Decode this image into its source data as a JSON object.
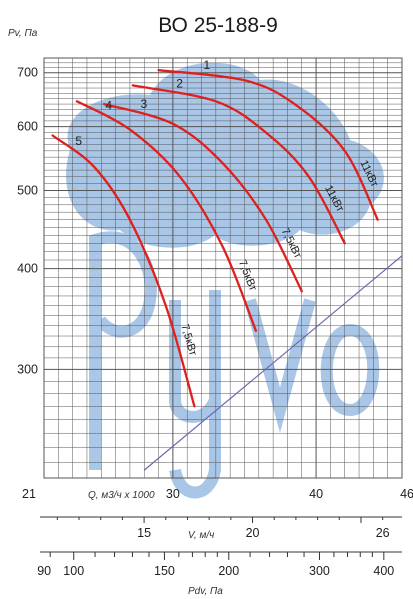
{
  "chart_data": {
    "type": "line",
    "title": "ВО 25-188-9",
    "ylabel": "Pv, Па",
    "yscale": "log",
    "ylim": [
      220,
      730
    ],
    "y_ticks": [
      300,
      400,
      500,
      600,
      700
    ],
    "xlim": [
      21,
      46
    ],
    "x_ticks": [
      21,
      30,
      40,
      46
    ],
    "xlabel": "Q, м3/ч x 1000",
    "x2label": "V, м/ч",
    "x2_ticks": [
      15,
      20,
      26
    ],
    "x3label": "Pdv, Па",
    "x3_ticks": [
      90,
      100,
      150,
      200,
      300,
      400
    ],
    "system_line": {
      "x": [
        28,
        46
      ],
      "y": [
        225,
        415
      ]
    },
    "series": [
      {
        "label": "1",
        "power": "11кВт",
        "x": [
          29.0,
          35.0,
          38.5,
          42.0,
          44.3
        ],
        "y": [
          705,
          685,
          640,
          560,
          460
        ]
      },
      {
        "label": "2",
        "power": "11кВт",
        "x": [
          27.2,
          33.0,
          36.5,
          39.5,
          42.0
        ],
        "y": [
          675,
          645,
          590,
          520,
          430
        ]
      },
      {
        "label": "3",
        "power": "7,5кВт",
        "x": [
          25.2,
          30.0,
          33.5,
          36.5,
          39.0
        ],
        "y": [
          640,
          605,
          540,
          460,
          375
        ]
      },
      {
        "label": "4",
        "power": "7,5кВт",
        "x": [
          23.3,
          27.0,
          30.5,
          33.5,
          35.8
        ],
        "y": [
          645,
          595,
          520,
          425,
          335
        ]
      },
      {
        "label": "5",
        "power": "7,5кВт",
        "x": [
          21.6,
          24.5,
          27.0,
          29.5,
          31.5
        ],
        "y": [
          585,
          535,
          460,
          360,
          270
        ]
      }
    ]
  },
  "watermark": {
    "text": "Руvo",
    "color": "#8db4df"
  },
  "colors": {
    "curve": "#e0201c",
    "grid": "#555555",
    "system": "#6a6ab0"
  }
}
